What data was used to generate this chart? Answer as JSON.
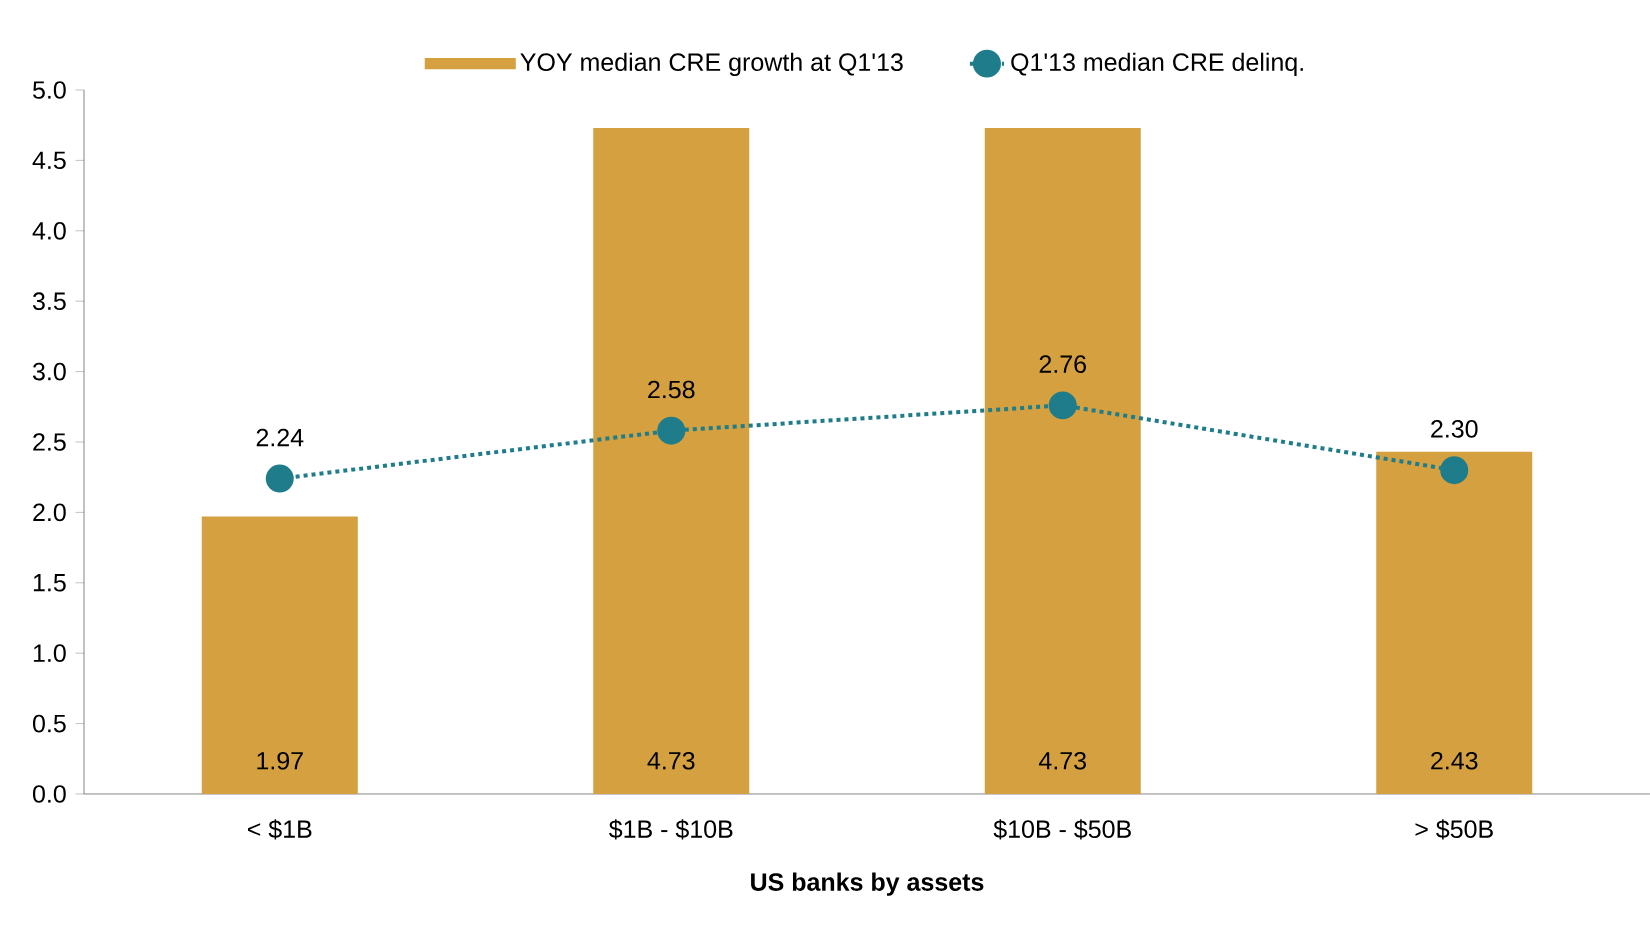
{
  "chart_data": {
    "type": "bar",
    "xlabel": "US banks by assets",
    "categories": [
      "< $1B",
      "$1B - $10B",
      "$10B - $50B",
      "> $50B"
    ],
    "ylim": [
      0,
      5
    ],
    "yticks": [
      {
        "value": 0,
        "label": "0.0"
      },
      {
        "value": 0.5,
        "label": "0.5"
      },
      {
        "value": 1,
        "label": "1.0"
      },
      {
        "value": 1.5,
        "label": "1.5"
      },
      {
        "value": 2,
        "label": "2.0"
      },
      {
        "value": 2.5,
        "label": "2.5"
      },
      {
        "value": 3,
        "label": "3.0"
      },
      {
        "value": 3.5,
        "label": "3.5"
      },
      {
        "value": 4,
        "label": "4.0"
      },
      {
        "value": 4.5,
        "label": "4.5"
      },
      {
        "value": 5,
        "label": "5.0"
      }
    ],
    "grid": false,
    "legend": "top",
    "series": [
      {
        "name": "YOY median CRE growth at Q1'13",
        "color": "#d4a040",
        "values": [
          1.97,
          4.73,
          4.73,
          2.43
        ],
        "value_labels": [
          "1.97",
          "4.73",
          "4.73",
          "2.43"
        ]
      },
      {
        "name": "Q1'13 median CRE delinq.",
        "type": "line",
        "color": "#1f7c8a",
        "marker": "circle",
        "line_style": "dotted",
        "values": [
          2.24,
          2.58,
          2.76,
          2.3
        ],
        "value_labels": [
          "2.24",
          "2.58",
          "2.76",
          "2.30"
        ]
      }
    ]
  }
}
